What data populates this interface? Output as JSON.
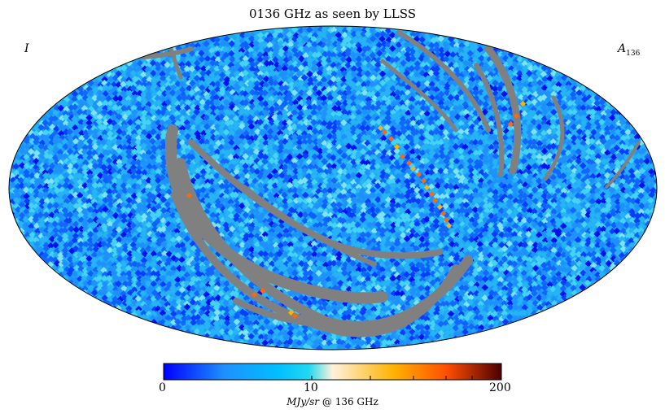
{
  "title": "0136 GHz as seen by LLSS",
  "stokes_label": "I",
  "component_label": "A",
  "component_subscript": "136",
  "colorbar": {
    "min_label": "0",
    "mid_label": "10",
    "max_label": "200",
    "unit_italic": "MJy/sr",
    "unit_rest": "@ 136 GHz",
    "colors": [
      "#0000ff",
      "#1e90ff",
      "#00bfff",
      "#22d8f0",
      "#fff1dc",
      "#ffb300",
      "#ff4d00",
      "#4a0000"
    ]
  },
  "map": {
    "projection": "mollweide",
    "base_color": "#1ca8f0",
    "masked_color": "#808080"
  }
}
